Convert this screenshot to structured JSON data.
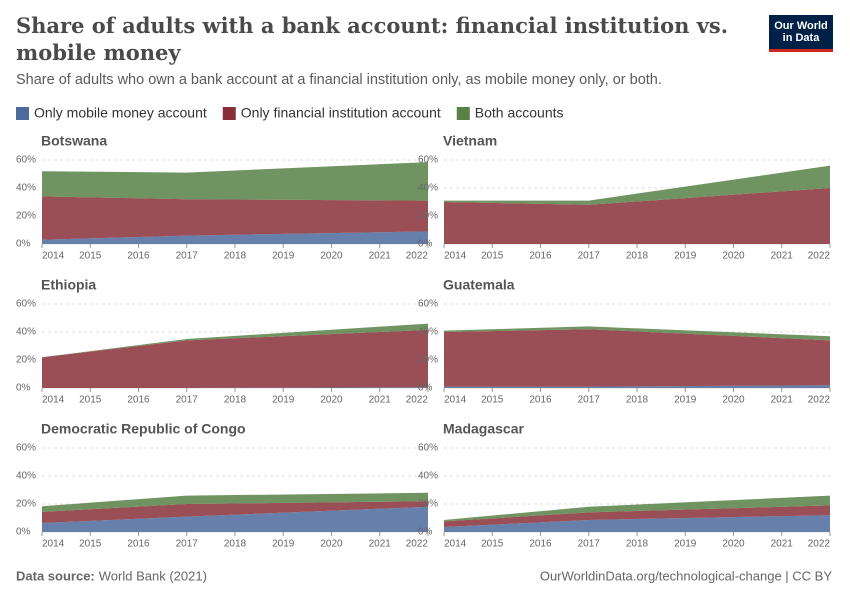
{
  "header": {
    "title": "Share of adults with a bank account: financial institution vs. mobile money",
    "subtitle": "Share of adults who own a bank account at a financial institution only, as mobile money only, or both.",
    "logo": [
      "Our World",
      "in Data"
    ]
  },
  "legend": [
    {
      "name": "Only mobile money account",
      "color": "#4c6a9c"
    },
    {
      "name": "Only financial institution account",
      "color": "#883039"
    },
    {
      "name": "Both accounts",
      "color": "#578145"
    }
  ],
  "footer": {
    "source_label": "Data source:",
    "source": "World Bank (2021)",
    "link": "OurWorldinData.org/technological-change | CC BY"
  },
  "chart_data": [
    {
      "type": "area",
      "stacked": true,
      "title": "Botswana",
      "x": [
        2014,
        2017,
        2022
      ],
      "series": [
        {
          "color": "#4c6a9c",
          "values": [
            3,
            6,
            9
          ]
        },
        {
          "color": "#883039",
          "values": [
            31,
            26,
            22
          ]
        },
        {
          "color": "#578145",
          "values": [
            18,
            19,
            27.5
          ]
        }
      ],
      "xlim": [
        2014,
        2022
      ],
      "xticks": [
        2014,
        2015,
        2016,
        2017,
        2018,
        2019,
        2020,
        2021,
        2022
      ],
      "ylim": [
        0,
        60
      ],
      "yticks": [
        {
          "value": 0,
          "label": "0%"
        },
        {
          "value": 20,
          "label": "20%"
        },
        {
          "value": 40,
          "label": "40%"
        },
        {
          "value": 60,
          "label": "60%"
        }
      ],
      "grid": true
    },
    {
      "type": "area",
      "stacked": true,
      "title": "Vietnam",
      "x": [
        2014,
        2017,
        2022
      ],
      "series": [
        {
          "color": "#4c6a9c",
          "values": [
            0,
            0,
            0
          ]
        },
        {
          "color": "#883039",
          "values": [
            30,
            28,
            40
          ]
        },
        {
          "color": "#578145",
          "values": [
            1,
            3,
            16
          ]
        }
      ],
      "xlim": [
        2014,
        2022
      ],
      "xticks": [
        2014,
        2015,
        2016,
        2017,
        2018,
        2019,
        2020,
        2021,
        2022
      ],
      "ylim": [
        0,
        60
      ],
      "yticks": [
        {
          "value": 0,
          "label": "0%"
        },
        {
          "value": 20,
          "label": "20%"
        },
        {
          "value": 40,
          "label": "40%"
        },
        {
          "value": 60,
          "label": "60%"
        }
      ],
      "grid": true
    },
    {
      "type": "area",
      "stacked": true,
      "title": "Ethiopia",
      "x": [
        2014,
        2017,
        2022
      ],
      "series": [
        {
          "color": "#4c6a9c",
          "values": [
            0,
            0,
            0.5
          ]
        },
        {
          "color": "#883039",
          "values": [
            22,
            34,
            41
          ]
        },
        {
          "color": "#578145",
          "values": [
            0,
            1,
            4.5
          ]
        }
      ],
      "xlim": [
        2014,
        2022
      ],
      "xticks": [
        2014,
        2015,
        2016,
        2017,
        2018,
        2019,
        2020,
        2021,
        2022
      ],
      "ylim": [
        0,
        60
      ],
      "yticks": [
        {
          "value": 0,
          "label": "0%"
        },
        {
          "value": 20,
          "label": "20%"
        },
        {
          "value": 40,
          "label": "40%"
        },
        {
          "value": 60,
          "label": "60%"
        }
      ],
      "grid": true
    },
    {
      "type": "area",
      "stacked": true,
      "title": "Guatemala",
      "x": [
        2014,
        2017,
        2022
      ],
      "series": [
        {
          "color": "#4c6a9c",
          "values": [
            1,
            1,
            2
          ]
        },
        {
          "color": "#883039",
          "values": [
            39,
            41,
            32
          ]
        },
        {
          "color": "#578145",
          "values": [
            1,
            2,
            3
          ]
        }
      ],
      "xlim": [
        2014,
        2022
      ],
      "xticks": [
        2014,
        2015,
        2016,
        2017,
        2018,
        2019,
        2020,
        2021,
        2022
      ],
      "ylim": [
        0,
        60
      ],
      "yticks": [
        {
          "value": 0,
          "label": "0%"
        },
        {
          "value": 20,
          "label": "20%"
        },
        {
          "value": 40,
          "label": "40%"
        },
        {
          "value": 60,
          "label": "60%"
        }
      ],
      "grid": true
    },
    {
      "type": "area",
      "stacked": true,
      "title": "Democratic Republic of Congo",
      "x": [
        2014,
        2017,
        2022
      ],
      "series": [
        {
          "color": "#4c6a9c",
          "values": [
            6.4,
            11,
            18
          ]
        },
        {
          "color": "#883039",
          "values": [
            8,
            9,
            4
          ]
        },
        {
          "color": "#578145",
          "values": [
            4,
            6,
            6
          ]
        }
      ],
      "xlim": [
        2014,
        2022
      ],
      "xticks": [
        2014,
        2015,
        2016,
        2017,
        2018,
        2019,
        2020,
        2021,
        2022
      ],
      "ylim": [
        0,
        60
      ],
      "yticks": [
        {
          "value": 0,
          "label": "0%"
        },
        {
          "value": 20,
          "label": "20%"
        },
        {
          "value": 40,
          "label": "40%"
        },
        {
          "value": 60,
          "label": "60%"
        }
      ],
      "grid": true
    },
    {
      "type": "area",
      "stacked": true,
      "title": "Madagascar",
      "x": [
        2014,
        2017,
        2022
      ],
      "series": [
        {
          "color": "#4c6a9c",
          "values": [
            3.6,
            8.6,
            12
          ]
        },
        {
          "color": "#883039",
          "values": [
            4,
            5.4,
            7
          ]
        },
        {
          "color": "#578145",
          "values": [
            1,
            4,
            7
          ]
        }
      ],
      "xlim": [
        2014,
        2022
      ],
      "xticks": [
        2014,
        2015,
        2016,
        2017,
        2018,
        2019,
        2020,
        2021,
        2022
      ],
      "ylim": [
        0,
        60
      ],
      "yticks": [
        {
          "value": 0,
          "label": "0%"
        },
        {
          "value": 20,
          "label": "20%"
        },
        {
          "value": 40,
          "label": "40%"
        },
        {
          "value": 60,
          "label": "60%"
        }
      ],
      "grid": true
    }
  ]
}
